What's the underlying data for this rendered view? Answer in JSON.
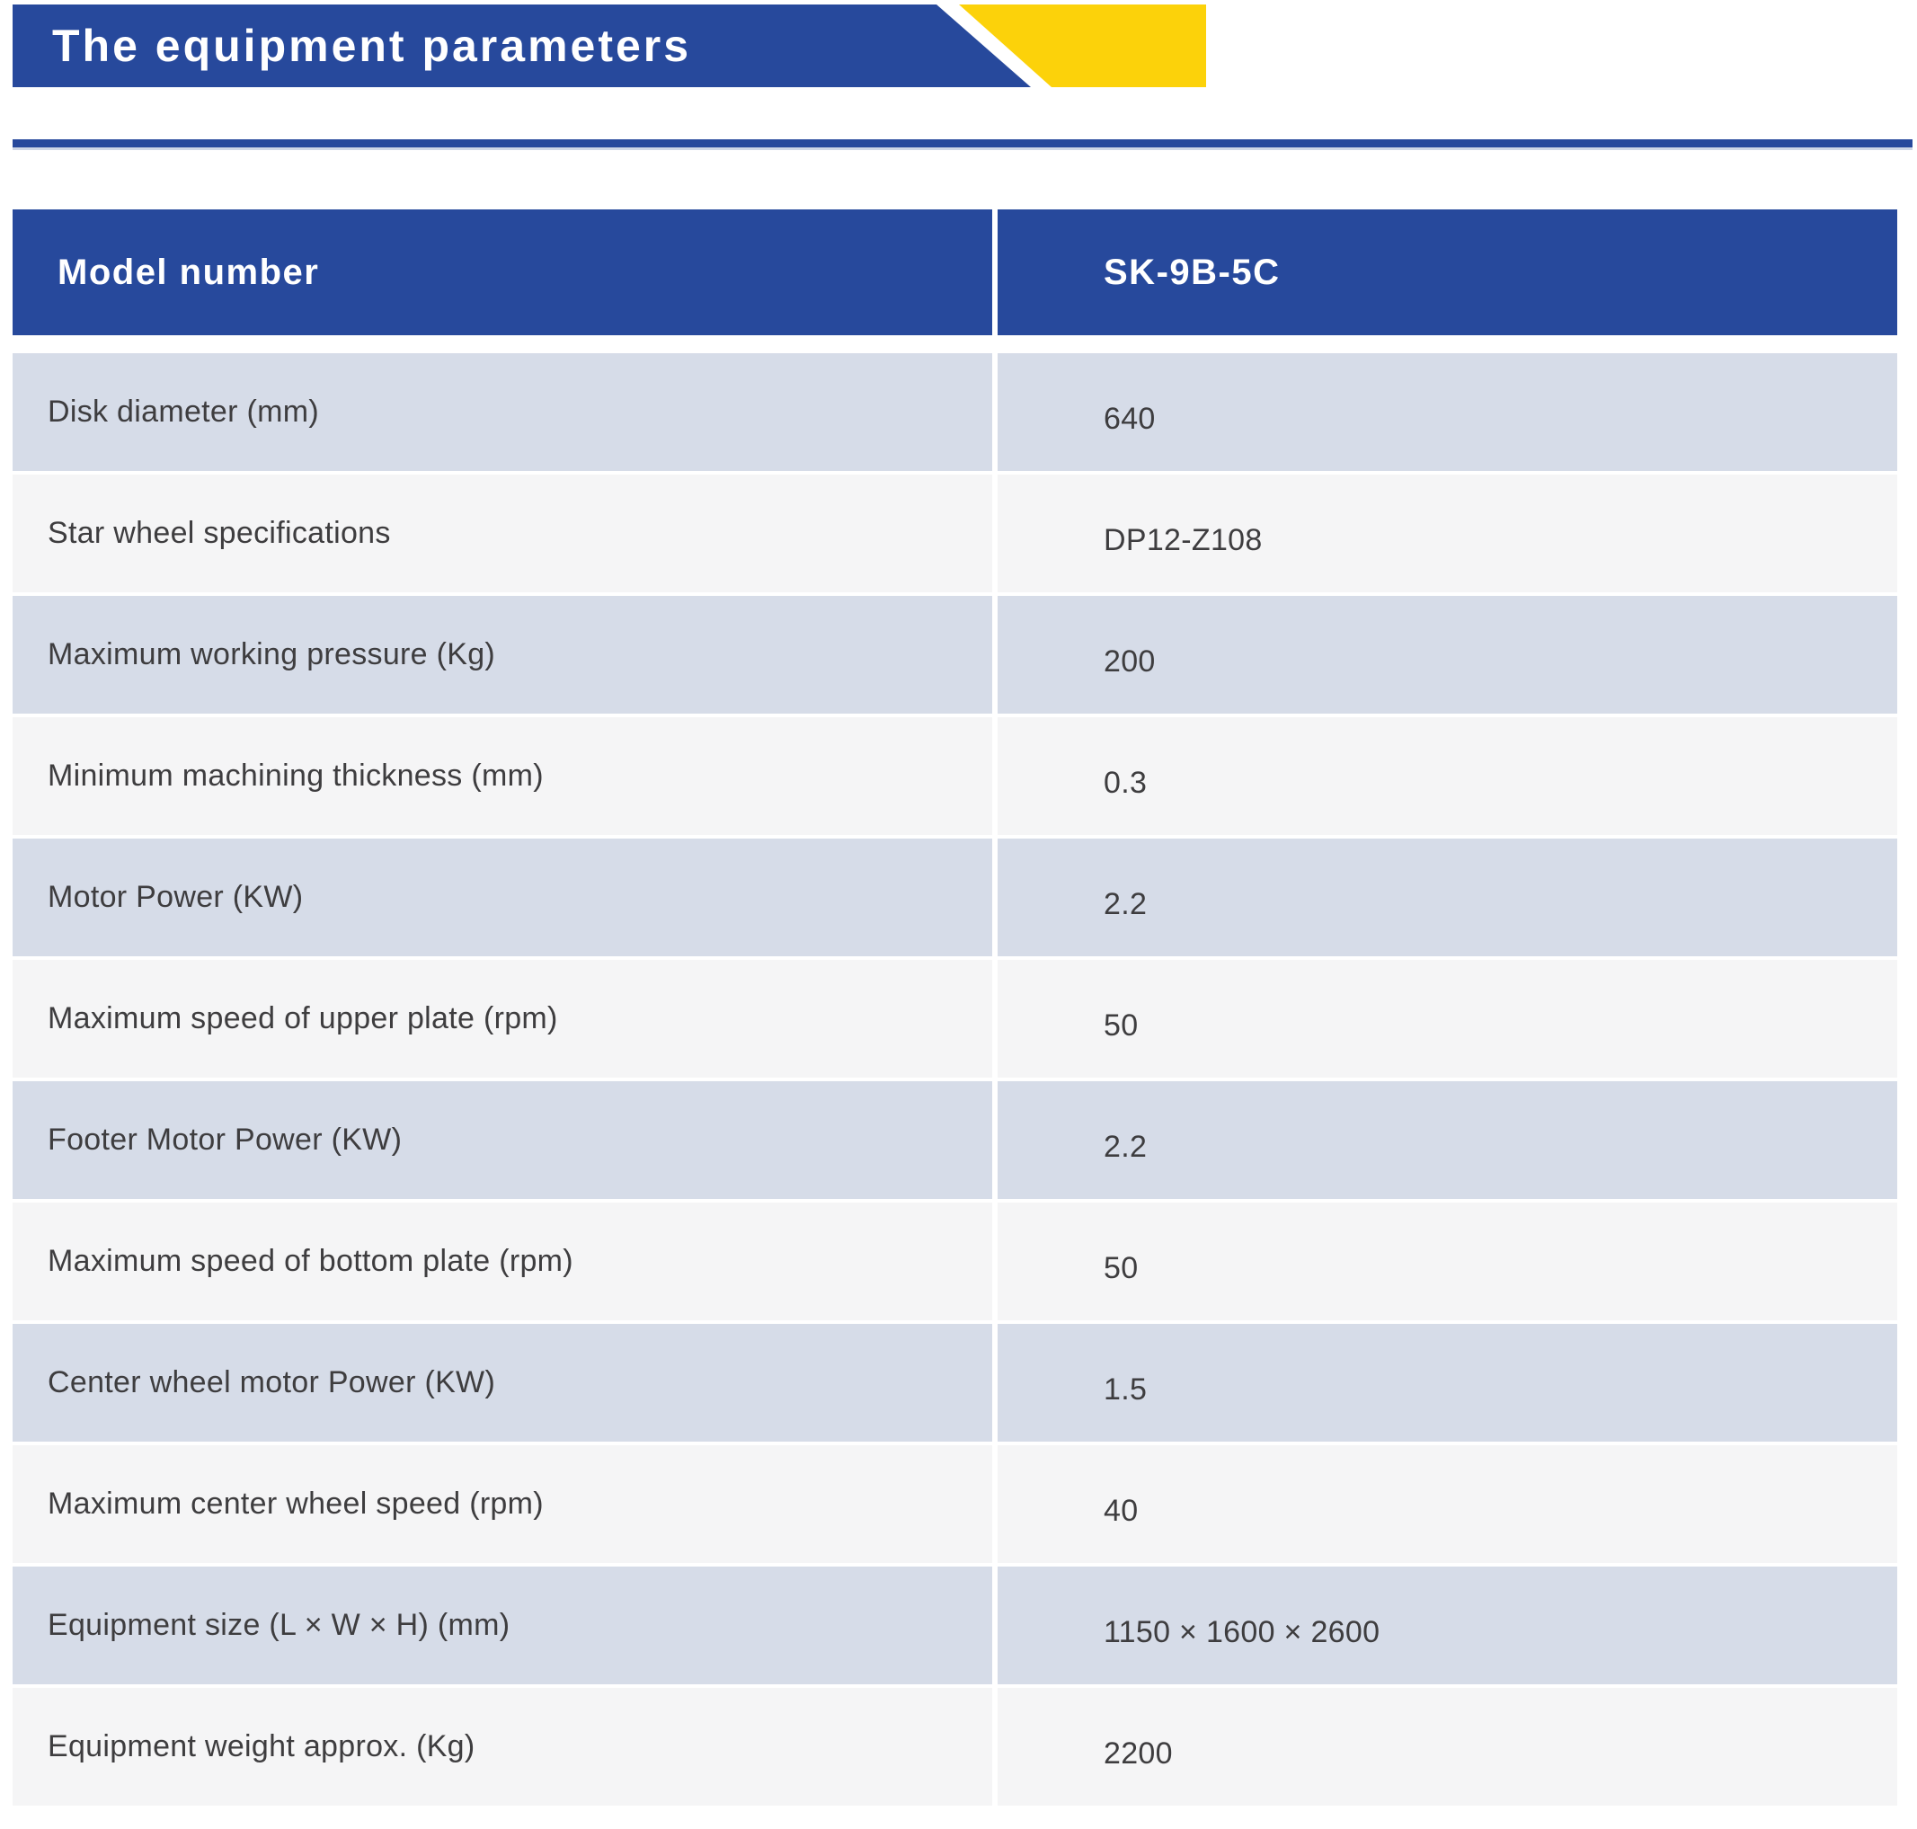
{
  "banner": {
    "title": "The equipment parameters"
  },
  "colors": {
    "accent_blue": "#27499c",
    "accent_yellow": "#fcd20a",
    "row_tint": "#d6dce8",
    "row_plain": "#f5f5f6",
    "body_text": "#3e3d3f",
    "rule_shadow": "#aebad6"
  },
  "table": {
    "header": {
      "label": "Model number",
      "value": "SK-9B-5C"
    },
    "rows": [
      {
        "label": "Disk diameter (mm)",
        "value": "640"
      },
      {
        "label": "Star wheel specifications",
        "value": "DP12-Z108"
      },
      {
        "label": "Maximum working pressure (Kg)",
        "value": "200"
      },
      {
        "label": "Minimum machining thickness (mm)",
        "value": "0.3"
      },
      {
        "label": "Motor Power (KW)",
        "value": "2.2"
      },
      {
        "label": "Maximum speed of upper plate (rpm)",
        "value": "50"
      },
      {
        "label": "Footer Motor Power (KW)",
        "value": "2.2"
      },
      {
        "label": "Maximum speed of bottom plate (rpm)",
        "value": "50"
      },
      {
        "label": "Center wheel motor Power (KW)",
        "value": "1.5"
      },
      {
        "label": "Maximum center wheel speed (rpm)",
        "value": "40"
      },
      {
        "label": "Equipment size (L × W × H) (mm)",
        "value": "1150 × 1600 × 2600"
      },
      {
        "label": "Equipment weight approx. (Kg)",
        "value": "2200"
      }
    ]
  }
}
